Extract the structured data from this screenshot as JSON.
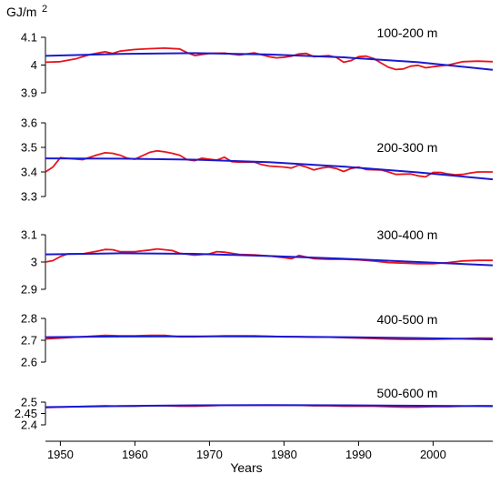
{
  "chart_data": {
    "type": "line",
    "ylabel": "GJ/m",
    "ylabel_sup": "2",
    "xlabel": "Years",
    "x_ticks": [
      1950,
      1960,
      1970,
      1980,
      1990,
      2000
    ],
    "xlim": [
      1948,
      2008
    ],
    "colors": {
      "observed": "#e8141b",
      "trend": "#1a1ad1",
      "axis": "#000000"
    },
    "panels": [
      {
        "label": "100-200 m",
        "ylim": [
          3.9,
          4.1
        ],
        "yticks": [
          "3.9",
          "4",
          "4.1"
        ],
        "observed": [
          [
            1948,
            4.01
          ],
          [
            1950,
            4.012
          ],
          [
            1952,
            4.022
          ],
          [
            1954,
            4.038
          ],
          [
            1956,
            4.048
          ],
          [
            1957,
            4.042
          ],
          [
            1958,
            4.05
          ],
          [
            1960,
            4.056
          ],
          [
            1962,
            4.059
          ],
          [
            1964,
            4.061
          ],
          [
            1966,
            4.058
          ],
          [
            1967,
            4.045
          ],
          [
            1968,
            4.034
          ],
          [
            1970,
            4.042
          ],
          [
            1972,
            4.043
          ],
          [
            1974,
            4.036
          ],
          [
            1975,
            4.04
          ],
          [
            1976,
            4.044
          ],
          [
            1978,
            4.03
          ],
          [
            1979,
            4.026
          ],
          [
            1980,
            4.028
          ],
          [
            1981,
            4.032
          ],
          [
            1982,
            4.04
          ],
          [
            1983,
            4.042
          ],
          [
            1984,
            4.03
          ],
          [
            1986,
            4.034
          ],
          [
            1987,
            4.028
          ],
          [
            1988,
            4.01
          ],
          [
            1989,
            4.016
          ],
          [
            1990,
            4.03
          ],
          [
            1991,
            4.032
          ],
          [
            1992,
            4.024
          ],
          [
            1993,
            4.008
          ],
          [
            1994,
            3.992
          ],
          [
            1995,
            3.984
          ],
          [
            1996,
            3.986
          ],
          [
            1997,
            3.996
          ],
          [
            1998,
            3.999
          ],
          [
            1999,
            3.99
          ],
          [
            2000,
            3.994
          ],
          [
            2002,
            4.0
          ],
          [
            2004,
            4.012
          ],
          [
            2006,
            4.014
          ],
          [
            2008,
            4.012
          ]
        ],
        "trend": [
          [
            1948,
            4.033
          ],
          [
            1958,
            4.04
          ],
          [
            1968,
            4.043
          ],
          [
            1978,
            4.038
          ],
          [
            1988,
            4.028
          ],
          [
            1998,
            4.01
          ],
          [
            2008,
            3.983
          ]
        ]
      },
      {
        "label": "200-300 m",
        "ylim": [
          3.3,
          3.6
        ],
        "yticks": [
          "3.3",
          "3.4",
          "3.5",
          "3.6"
        ],
        "observed": [
          [
            1948,
            3.4
          ],
          [
            1949,
            3.42
          ],
          [
            1950,
            3.458
          ],
          [
            1951,
            3.455
          ],
          [
            1953,
            3.45
          ],
          [
            1955,
            3.47
          ],
          [
            1956,
            3.478
          ],
          [
            1957,
            3.476
          ],
          [
            1958,
            3.468
          ],
          [
            1959,
            3.456
          ],
          [
            1960,
            3.452
          ],
          [
            1961,
            3.466
          ],
          [
            1962,
            3.48
          ],
          [
            1963,
            3.486
          ],
          [
            1964,
            3.482
          ],
          [
            1965,
            3.476
          ],
          [
            1966,
            3.468
          ],
          [
            1967,
            3.45
          ],
          [
            1968,
            3.446
          ],
          [
            1969,
            3.456
          ],
          [
            1970,
            3.452
          ],
          [
            1971,
            3.448
          ],
          [
            1972,
            3.46
          ],
          [
            1973,
            3.442
          ],
          [
            1974,
            3.44
          ],
          [
            1976,
            3.44
          ],
          [
            1977,
            3.43
          ],
          [
            1978,
            3.424
          ],
          [
            1980,
            3.42
          ],
          [
            1981,
            3.416
          ],
          [
            1982,
            3.428
          ],
          [
            1983,
            3.42
          ],
          [
            1984,
            3.408
          ],
          [
            1985,
            3.416
          ],
          [
            1986,
            3.42
          ],
          [
            1987,
            3.414
          ],
          [
            1988,
            3.402
          ],
          [
            1989,
            3.414
          ],
          [
            1990,
            3.42
          ],
          [
            1991,
            3.41
          ],
          [
            1993,
            3.408
          ],
          [
            1994,
            3.4
          ],
          [
            1995,
            3.39
          ],
          [
            1997,
            3.392
          ],
          [
            1998,
            3.384
          ],
          [
            1999,
            3.38
          ],
          [
            2000,
            3.398
          ],
          [
            2001,
            3.398
          ],
          [
            2002,
            3.392
          ],
          [
            2003,
            3.388
          ],
          [
            2004,
            3.39
          ],
          [
            2005,
            3.396
          ],
          [
            2006,
            3.4
          ],
          [
            2008,
            3.4
          ]
        ],
        "trend": [
          [
            1948,
            3.455
          ],
          [
            1958,
            3.454
          ],
          [
            1968,
            3.45
          ],
          [
            1978,
            3.44
          ],
          [
            1988,
            3.422
          ],
          [
            1998,
            3.398
          ],
          [
            2008,
            3.37
          ]
        ]
      },
      {
        "label": "300-400 m",
        "ylim": [
          2.9,
          3.1
        ],
        "yticks": [
          "2.9",
          "3",
          "3.1"
        ],
        "observed": [
          [
            1948,
            3.0
          ],
          [
            1949,
            3.005
          ],
          [
            1950,
            3.02
          ],
          [
            1951,
            3.03
          ],
          [
            1953,
            3.03
          ],
          [
            1955,
            3.04
          ],
          [
            1956,
            3.046
          ],
          [
            1957,
            3.045
          ],
          [
            1958,
            3.038
          ],
          [
            1960,
            3.038
          ],
          [
            1962,
            3.044
          ],
          [
            1963,
            3.048
          ],
          [
            1965,
            3.042
          ],
          [
            1966,
            3.032
          ],
          [
            1968,
            3.025
          ],
          [
            1970,
            3.03
          ],
          [
            1971,
            3.038
          ],
          [
            1972,
            3.036
          ],
          [
            1974,
            3.028
          ],
          [
            1976,
            3.026
          ],
          [
            1978,
            3.022
          ],
          [
            1980,
            3.016
          ],
          [
            1981,
            3.012
          ],
          [
            1982,
            3.024
          ],
          [
            1984,
            3.012
          ],
          [
            1986,
            3.01
          ],
          [
            1988,
            3.01
          ],
          [
            1990,
            3.008
          ],
          [
            1992,
            3.004
          ],
          [
            1994,
            2.998
          ],
          [
            1996,
            2.996
          ],
          [
            1998,
            2.994
          ],
          [
            2000,
            2.994
          ],
          [
            2002,
            2.998
          ],
          [
            2004,
            3.004
          ],
          [
            2006,
            3.006
          ],
          [
            2008,
            3.006
          ]
        ],
        "trend": [
          [
            1948,
            3.028
          ],
          [
            1958,
            3.032
          ],
          [
            1968,
            3.03
          ],
          [
            1978,
            3.022
          ],
          [
            1988,
            3.012
          ],
          [
            1998,
            3.0
          ],
          [
            2008,
            2.988
          ]
        ]
      },
      {
        "label": "400-500 m",
        "ylim": [
          2.6,
          2.8
        ],
        "yticks": [
          "2.6",
          "2.7",
          "2.8"
        ],
        "observed": [
          [
            1948,
            2.706
          ],
          [
            1950,
            2.71
          ],
          [
            1952,
            2.714
          ],
          [
            1954,
            2.718
          ],
          [
            1956,
            2.722
          ],
          [
            1958,
            2.72
          ],
          [
            1960,
            2.72
          ],
          [
            1962,
            2.722
          ],
          [
            1964,
            2.722
          ],
          [
            1966,
            2.716
          ],
          [
            1968,
            2.716
          ],
          [
            1970,
            2.718
          ],
          [
            1972,
            2.72
          ],
          [
            1974,
            2.72
          ],
          [
            1976,
            2.72
          ],
          [
            1978,
            2.718
          ],
          [
            1980,
            2.716
          ],
          [
            1982,
            2.716
          ],
          [
            1984,
            2.714
          ],
          [
            1986,
            2.714
          ],
          [
            1988,
            2.712
          ],
          [
            1990,
            2.71
          ],
          [
            1992,
            2.708
          ],
          [
            1994,
            2.706
          ],
          [
            1996,
            2.704
          ],
          [
            1998,
            2.704
          ],
          [
            2000,
            2.704
          ],
          [
            2002,
            2.706
          ],
          [
            2004,
            2.708
          ],
          [
            2006,
            2.71
          ],
          [
            2008,
            2.71
          ]
        ],
        "trend": [
          [
            1948,
            2.714
          ],
          [
            1958,
            2.717
          ],
          [
            1968,
            2.718
          ],
          [
            1978,
            2.717
          ],
          [
            1988,
            2.714
          ],
          [
            1998,
            2.71
          ],
          [
            2008,
            2.704
          ]
        ]
      },
      {
        "label": "500-600 m",
        "ylim": [
          2.4,
          2.5
        ],
        "yticks": [
          "2.4",
          "2.45",
          "2.5"
        ],
        "observed": [
          [
            1948,
            2.476
          ],
          [
            1950,
            2.478
          ],
          [
            1952,
            2.48
          ],
          [
            1954,
            2.482
          ],
          [
            1956,
            2.484
          ],
          [
            1958,
            2.482
          ],
          [
            1960,
            2.482
          ],
          [
            1962,
            2.484
          ],
          [
            1964,
            2.484
          ],
          [
            1966,
            2.482
          ],
          [
            1968,
            2.482
          ],
          [
            1970,
            2.484
          ],
          [
            1972,
            2.486
          ],
          [
            1974,
            2.486
          ],
          [
            1976,
            2.486
          ],
          [
            1978,
            2.486
          ],
          [
            1980,
            2.486
          ],
          [
            1982,
            2.486
          ],
          [
            1984,
            2.484
          ],
          [
            1986,
            2.484
          ],
          [
            1988,
            2.482
          ],
          [
            1990,
            2.482
          ],
          [
            1992,
            2.482
          ],
          [
            1994,
            2.48
          ],
          [
            1996,
            2.478
          ],
          [
            1998,
            2.478
          ],
          [
            2000,
            2.48
          ],
          [
            2002,
            2.48
          ],
          [
            2004,
            2.482
          ],
          [
            2006,
            2.484
          ],
          [
            2008,
            2.484
          ]
        ],
        "trend": [
          [
            1948,
            2.478
          ],
          [
            1958,
            2.483
          ],
          [
            1968,
            2.486
          ],
          [
            1978,
            2.487
          ],
          [
            1988,
            2.486
          ],
          [
            1998,
            2.484
          ],
          [
            2008,
            2.482
          ]
        ]
      }
    ]
  }
}
